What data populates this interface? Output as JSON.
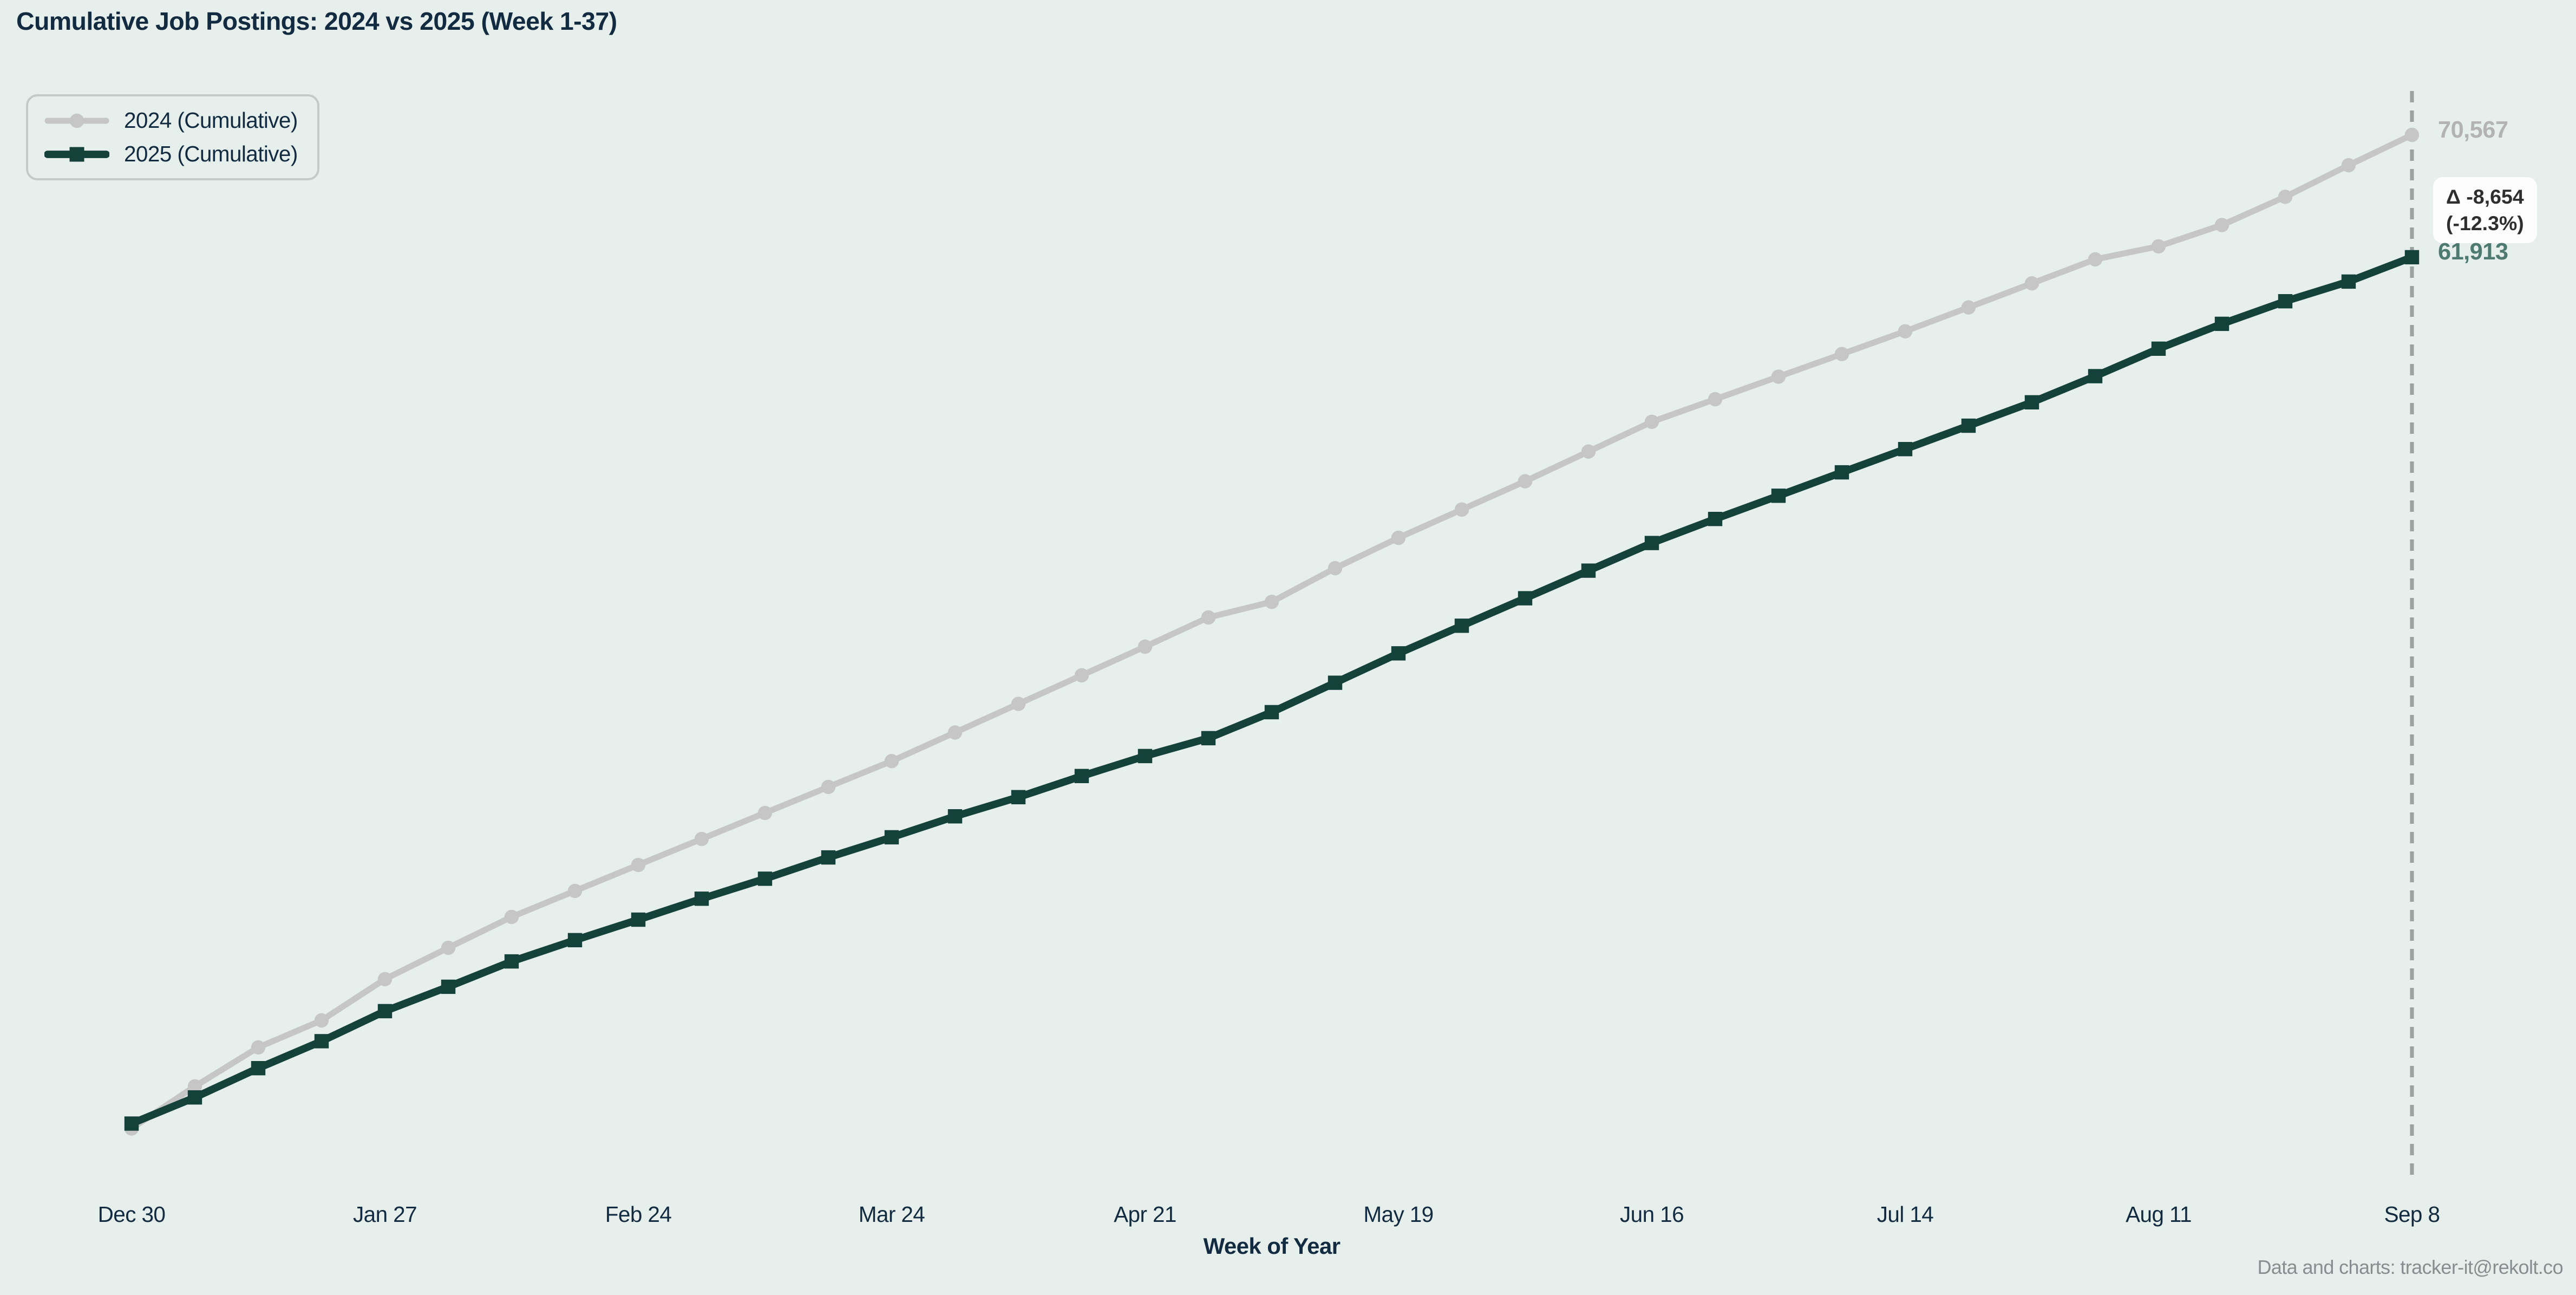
{
  "colors": {
    "background": "#e6efeb",
    "title_text": "#122b40",
    "axis_text": "#122b40",
    "series_2024": "#c5c6c5",
    "series_2025": "#14423a",
    "end_label_2024": "#b2b3b2",
    "end_label_2025": "#4f7a71",
    "delta_text": "#2e2e2e",
    "delta_box_bg": "#fcfdfc",
    "dashed_line": "#9aa3a1",
    "legend_border": "#c3cbc8",
    "footer_text": "#868e90"
  },
  "annotations": {
    "end_2024": "70,567",
    "end_2025": "61,913",
    "delta_line1": "Δ -8,654",
    "delta_line2": "(-12.3%)"
  },
  "footer": "Data and charts: tracker-it@rekolt.co",
  "chart_data": {
    "type": "line",
    "title": "Cumulative Job Postings: 2024 vs 2025 (Week 1-37)",
    "xlabel": "Week of Year",
    "ylabel": "",
    "grid": false,
    "legend_position": "upper left",
    "ylim": [
      0,
      74000
    ],
    "x_tick_labels": [
      "Dec 30",
      "Jan 27",
      "Feb 24",
      "Mar 24",
      "Apr 21",
      "May 19",
      "Jun 16",
      "Jul 14",
      "Aug 11",
      "Sep 8"
    ],
    "categories": [
      "Dec 30",
      "Jan 6",
      "Jan 13",
      "Jan 20",
      "Jan 27",
      "Feb 3",
      "Feb 10",
      "Feb 17",
      "Feb 24",
      "Mar 3",
      "Mar 10",
      "Mar 17",
      "Mar 24",
      "Mar 31",
      "Apr 7",
      "Apr 14",
      "Apr 21",
      "Apr 28",
      "May 5",
      "May 12",
      "May 19",
      "May 26",
      "Jun 2",
      "Jun 9",
      "Jun 16",
      "Jun 23",
      "Jun 30",
      "Jul 7",
      "Jul 14",
      "Jul 21",
      "Jul 28",
      "Aug 4",
      "Aug 11",
      "Aug 18",
      "Aug 25",
      "Sep 1",
      "Sep 8"
    ],
    "series": [
      {
        "name": "2024 (Cumulative)",
        "color": "#c5c6c5",
        "marker": "circle",
        "final_value": 70567,
        "values": [
          300,
          3280,
          6040,
          7950,
          10860,
          13080,
          15260,
          17100,
          18940,
          20780,
          22620,
          24460,
          26290,
          28310,
          30330,
          32350,
          34370,
          36440,
          37550,
          39920,
          42070,
          44070,
          46070,
          48170,
          50270,
          51870,
          53470,
          55070,
          56670,
          58370,
          60070,
          61770,
          62690,
          64190,
          66190,
          68420,
          70567
        ]
      },
      {
        "name": "2025 (Cumulative)",
        "color": "#14423a",
        "marker": "square",
        "final_value": 61913,
        "values": [
          650,
          2500,
          4570,
          6480,
          8600,
          10320,
          12120,
          13620,
          15070,
          16550,
          17970,
          19470,
          20900,
          22380,
          23730,
          25230,
          26640,
          27900,
          29740,
          31820,
          33900,
          35850,
          37800,
          39750,
          41700,
          43400,
          45050,
          46700,
          48350,
          50000,
          51650,
          53500,
          55450,
          57200,
          58800,
          60190,
          61913
        ]
      }
    ]
  }
}
